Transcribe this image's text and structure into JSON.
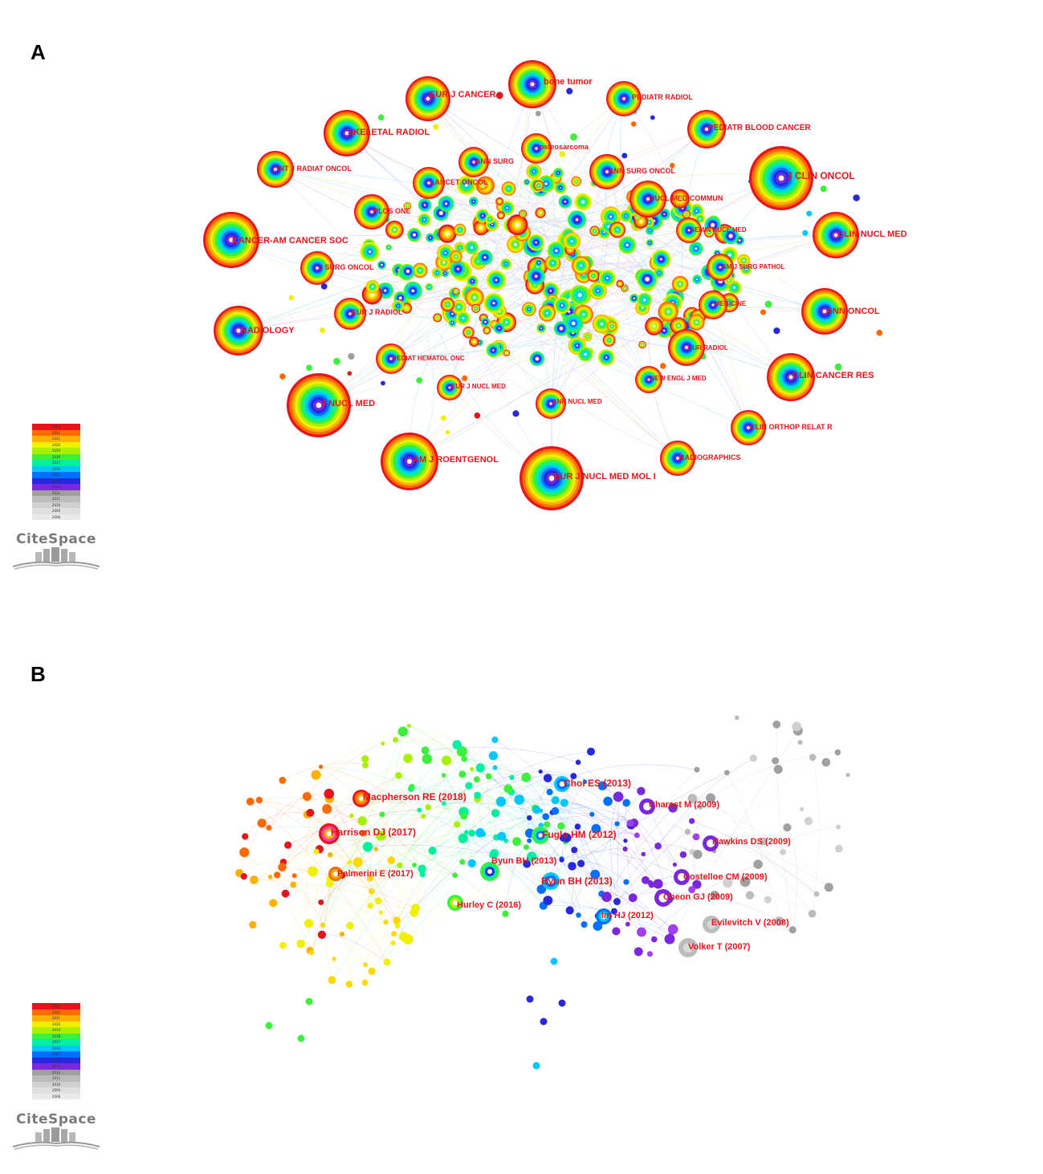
{
  "colors": {
    "label": "#e8141c",
    "timeline": [
      "#e8141c",
      "#ff6a00",
      "#ffb000",
      "#f0f000",
      "#a8f000",
      "#3cf03c",
      "#00f0a0",
      "#00c8ff",
      "#0070ff",
      "#2828e0",
      "#7a28e0",
      "#a0a0a0",
      "#bcbcbc",
      "#d0d0d0",
      "#e0e0e0"
    ]
  },
  "legend_years": [
    "2023",
    "2022",
    "2021",
    "2020",
    "2019",
    "2018",
    "2017",
    "2016",
    "2015",
    "2014",
    "2013",
    "2012",
    "2011",
    "2010",
    "2009",
    "2008"
  ],
  "logo_text": "CiteSpace",
  "panel_a": {
    "letter": "A",
    "labels": [
      {
        "text": "bone tumor"
      },
      {
        "text": "EUR J CANCER"
      },
      {
        "text": "PEDIATR RADIOL"
      },
      {
        "text": "SKELETAL RADIOL"
      },
      {
        "text": "PEDIATR BLOOD CANCER"
      },
      {
        "text": "osteosarcoma"
      },
      {
        "text": "INT J RADIAT ONCOL"
      },
      {
        "text": "ANN SURG"
      },
      {
        "text": "ANN SURG ONCOL"
      },
      {
        "text": "J CLIN ONCOL"
      },
      {
        "text": "LANCET ONCOL"
      },
      {
        "text": "NUCL MED COMMUN"
      },
      {
        "text": "PLOS ONE"
      },
      {
        "text": "CLIN NUCL MED"
      },
      {
        "text": "SEMIN NUCL MED"
      },
      {
        "text": "CANCER-AM CANCER SOC"
      },
      {
        "text": "J SURG ONCOL"
      },
      {
        "text": "AM J SURG PATHOL"
      },
      {
        "text": "MEDICINE"
      },
      {
        "text": "ANN ONCOL"
      },
      {
        "text": "EUR J RADIOL"
      },
      {
        "text": "RADIOLOGY"
      },
      {
        "text": "EUR RADIOL"
      },
      {
        "text": "PEDIAT HEMATOL ONC"
      },
      {
        "text": "CLIN CANCER RES"
      },
      {
        "text": "NEW ENGL J MED"
      },
      {
        "text": "EUR J NUCL MED"
      },
      {
        "text": "J NUCL MED"
      },
      {
        "text": "ANN NUCL MED"
      },
      {
        "text": "CLIN ORTHOP RELAT R"
      },
      {
        "text": "AM J ROENTGENOL"
      },
      {
        "text": "RADIOGRAPHICS"
      },
      {
        "text": "EUR J NUCL MED MOL I"
      }
    ]
  },
  "panel_b": {
    "letter": "B",
    "labels": [
      {
        "text": "Choi ES (2013)"
      },
      {
        "text": "Macpherson RE (2018)"
      },
      {
        "text": "Charest M (2009)"
      },
      {
        "text": "Harrison DJ (2017)"
      },
      {
        "text": "Fuglo HM (2012)"
      },
      {
        "text": "Hawkins DS (2009)"
      },
      {
        "text": "Byun BH (2013)"
      },
      {
        "text": "Palmerini E (2017)"
      },
      {
        "text": "Costelloe CM (2009)"
      },
      {
        "text": "Byun BH (2013)"
      },
      {
        "text": "Cheon GJ (2009)"
      },
      {
        "text": "Hurley C (2016)"
      },
      {
        "text": "Im HJ (2012)"
      },
      {
        "text": "Evilevitch V (2008)"
      },
      {
        "text": "Volker T (2007)"
      }
    ]
  }
}
